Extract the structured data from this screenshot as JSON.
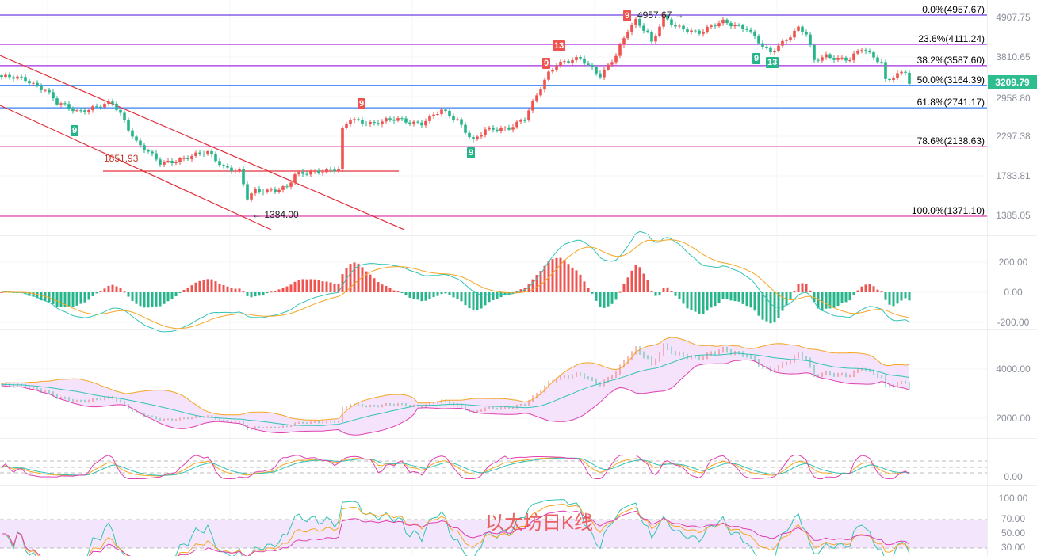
{
  "watermark": "以太坊日K线",
  "current_price": {
    "value": "3209.79",
    "color": "#2dbd8f"
  },
  "colors": {
    "up": "#ef5350",
    "down": "#26b58a",
    "channel": "#e0303a",
    "boll_fill": "#f4e3fb",
    "dif": "#33c3b5",
    "dea": "#f5a623",
    "lower": "#e040b0"
  },
  "price_axis": {
    "scale": "log",
    "ticks": [
      "4907.75",
      "3810.65",
      "2958.80",
      "2297.38",
      "1783.81",
      "1385.05"
    ]
  },
  "fibonacci": [
    {
      "label": "0.0%(4957.67)",
      "price": 4957.67,
      "color": "#6a3fe0"
    },
    {
      "label": "23.6%(4111.24)",
      "price": 4111.24,
      "color": "#a52ee0"
    },
    {
      "label": "38.2%(3587.60)",
      "price": 3587.6,
      "color": "#a52ee0"
    },
    {
      "label": "50.0%(3164.39)",
      "price": 3164.39,
      "color": "#3b82f6"
    },
    {
      "label": "61.8%(2741.17)",
      "price": 2741.17,
      "color": "#3b82f6"
    },
    {
      "label": "78.6%(2138.63)",
      "price": 2138.63,
      "color": "#e040b0"
    },
    {
      "label": "100.0%(1371.10)",
      "price": 1371.1,
      "color": "#e040b0"
    }
  ],
  "annotations": {
    "high": "4957.67",
    "low": "1384.00",
    "level": "1851.93",
    "high_arrow": "→",
    "low_arrow": "←"
  },
  "td_markers": [
    {
      "text": "9",
      "side": "down"
    },
    {
      "text": "9",
      "side": "down"
    },
    {
      "text": "9",
      "side": "down"
    },
    {
      "text": "13",
      "side": "down"
    },
    {
      "text": "9",
      "side": "up"
    },
    {
      "text": "9",
      "side": "up"
    },
    {
      "text": "13",
      "side": "up"
    },
    {
      "text": "9",
      "side": "up"
    }
  ],
  "macd": {
    "ticks": [
      "200.00",
      "0.00",
      "-200.00"
    ]
  },
  "boll": {
    "ticks": [
      "4000.00",
      "2000.00"
    ]
  },
  "kdj": {
    "ticks": [
      "0.00"
    ]
  },
  "rsi": {
    "ticks": [
      "100.00",
      "70.00",
      "50.00",
      "30.00"
    ]
  },
  "chart_data": {
    "type": "candlestick",
    "y_scale": "log",
    "close_path": [
      [
        0,
        3357
      ],
      [
        6,
        3300
      ],
      [
        11,
        3100
      ],
      [
        14,
        2828
      ],
      [
        19,
        2700
      ],
      [
        28,
        2828
      ],
      [
        30,
        2650
      ],
      [
        34,
        2222
      ],
      [
        40,
        1926
      ],
      [
        46,
        2000
      ],
      [
        52,
        2066
      ],
      [
        56,
        1900
      ],
      [
        60,
        1836
      ],
      [
        62,
        1540
      ],
      [
        64,
        1616
      ],
      [
        72,
        1655
      ],
      [
        74,
        1784
      ],
      [
        80,
        1850
      ],
      [
        85,
        1850
      ],
      [
        86,
        2380
      ],
      [
        88,
        2560
      ],
      [
        94,
        2497
      ],
      [
        100,
        2560
      ],
      [
        106,
        2497
      ],
      [
        111,
        2700
      ],
      [
        115,
        2560
      ],
      [
        119,
        2222
      ],
      [
        122,
        2380
      ],
      [
        128,
        2437
      ],
      [
        132,
        2560
      ],
      [
        134,
        2828
      ],
      [
        138,
        3457
      ],
      [
        140,
        3666
      ],
      [
        146,
        3750
      ],
      [
        151,
        3409
      ],
      [
        155,
        3841
      ],
      [
        158,
        4483
      ],
      [
        160,
        4800
      ],
      [
        163,
        4483
      ],
      [
        164,
        4200
      ],
      [
        167,
        4900
      ],
      [
        170,
        4600
      ],
      [
        176,
        4483
      ],
      [
        182,
        4750
      ],
      [
        188,
        4600
      ],
      [
        192,
        4055
      ],
      [
        194,
        3900
      ],
      [
        198,
        4300
      ],
      [
        201,
        4600
      ],
      [
        203,
        4400
      ],
      [
        205,
        3700
      ],
      [
        208,
        3841
      ],
      [
        214,
        3750
      ],
      [
        217,
        4000
      ],
      [
        222,
        3700
      ],
      [
        223,
        3300
      ],
      [
        228,
        3457
      ],
      [
        229,
        3210
      ]
    ]
  }
}
